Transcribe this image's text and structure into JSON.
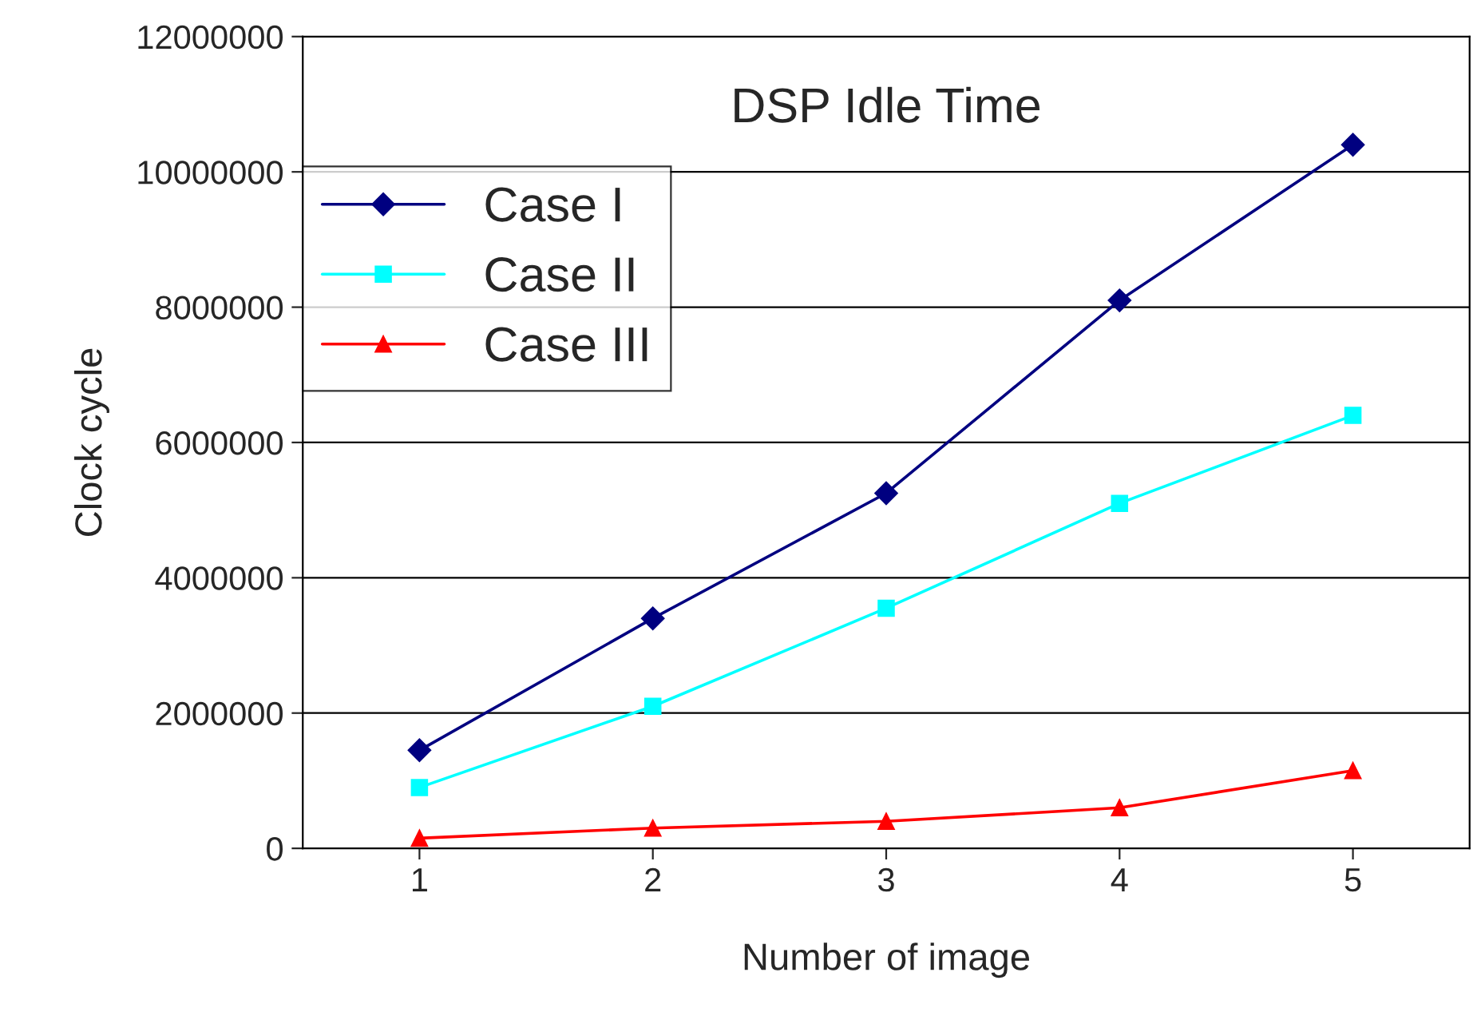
{
  "chart_data": {
    "type": "line",
    "title": "DSP Idle Time",
    "xlabel": "Number of image",
    "ylabel": "Clock cycle",
    "categories": [
      "1",
      "2",
      "3",
      "4",
      "5"
    ],
    "series": [
      {
        "name": "Case I",
        "color": "#000080",
        "marker": "diamond",
        "values": [
          1450000,
          3400000,
          5250000,
          8100000,
          10400000
        ]
      },
      {
        "name": "Case II",
        "color": "#00ffff",
        "marker": "square",
        "values": [
          900000,
          2100000,
          3550000,
          5100000,
          6400000
        ]
      },
      {
        "name": "Case III",
        "color": "#ff0000",
        "marker": "triangle",
        "values": [
          150000,
          300000,
          400000,
          600000,
          1150000
        ]
      }
    ],
    "ylim": [
      0,
      12000000
    ],
    "yticks": [
      0,
      2000000,
      4000000,
      6000000,
      8000000,
      10000000,
      12000000
    ],
    "grid": "y",
    "legend": "top left",
    "line_style": "solid"
  }
}
